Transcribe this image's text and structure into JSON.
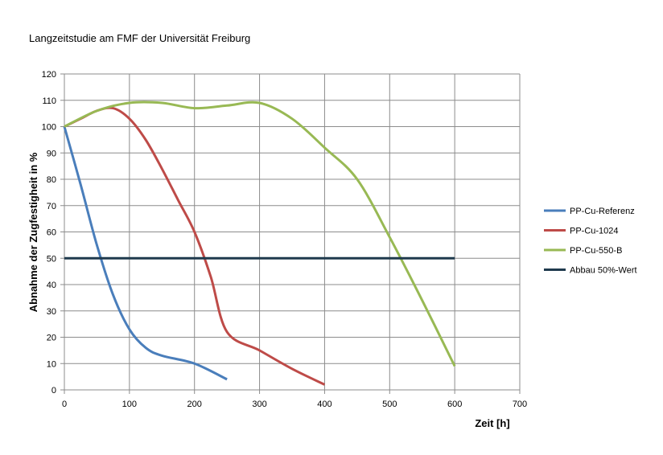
{
  "chart_data": {
    "type": "line",
    "title": "Langzeitstudie am FMF der Universität Freiburg",
    "xlabel": "Zeit [h]",
    "ylabel": "Abnahme der Zugfestigheit in %",
    "xlim": [
      0,
      700
    ],
    "ylim": [
      0,
      120
    ],
    "xticks": [
      0,
      100,
      200,
      300,
      400,
      500,
      600,
      700
    ],
    "yticks": [
      0,
      10,
      20,
      30,
      40,
      50,
      60,
      70,
      80,
      90,
      100,
      110,
      120
    ],
    "grid": true,
    "legend_position": "right",
    "series": [
      {
        "name": "PP-Cu-Referenz",
        "color": "#4a7ebb",
        "x": [
          0,
          25,
          50,
          75,
          100,
          125,
          150,
          200,
          250
        ],
        "y": [
          100,
          78,
          55,
          36,
          23,
          16,
          13,
          10,
          4
        ]
      },
      {
        "name": "PP-Cu-1024",
        "color": "#be4b48",
        "x": [
          0,
          25,
          50,
          75,
          100,
          125,
          150,
          175,
          200,
          225,
          250,
          300,
          350,
          400
        ],
        "y": [
          100,
          103,
          106,
          107,
          103,
          95,
          84,
          72,
          60,
          43,
          22,
          15,
          8,
          2
        ]
      },
      {
        "name": "PP-Cu-550-B",
        "color": "#98b954",
        "x": [
          0,
          50,
          100,
          150,
          200,
          250,
          300,
          350,
          400,
          450,
          500,
          550,
          600
        ],
        "y": [
          100,
          106,
          109,
          109,
          107,
          108,
          109,
          103,
          92,
          80,
          58,
          34,
          9
        ]
      },
      {
        "name": "Abbau 50%-Wert",
        "color": "#1f3a4d",
        "x": [
          0,
          600
        ],
        "y": [
          50,
          50
        ]
      }
    ]
  }
}
